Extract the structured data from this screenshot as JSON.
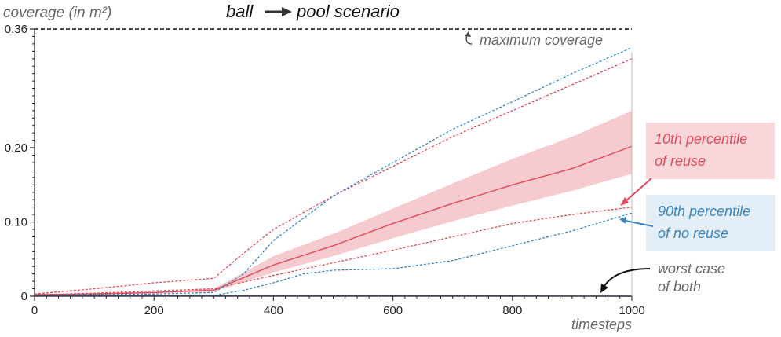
{
  "chart_data": {
    "type": "line",
    "title": {
      "left": "ball",
      "right": "pool scenario"
    },
    "ylabel": "coverage (in m²)",
    "xlabel": "timesteps",
    "xlim": [
      0,
      1000
    ],
    "ylim": [
      0,
      0.36
    ],
    "xticks": [
      0,
      200,
      400,
      600,
      800,
      1000
    ],
    "yticks": [
      {
        "value": 0,
        "label": "0"
      },
      {
        "value": 0.1,
        "label": "0.10"
      },
      {
        "value": 0.2,
        "label": "0.20"
      },
      {
        "value": 0.36,
        "label": "0.36"
      }
    ],
    "reference_line": {
      "value": 0.36,
      "label": "maximum coverage"
    },
    "colors": {
      "reuse": "#e34a5a",
      "band": "#f5c2c8",
      "noreuse": "#3a86c2",
      "gray": "#666666",
      "axis": "#222222"
    },
    "series": [
      {
        "key": "reuse_mean",
        "style": "solid",
        "color": "#e34a5a",
        "x": [
          0,
          100,
          200,
          300,
          400,
          500,
          600,
          700,
          800,
          900,
          1000
        ],
        "y": [
          0.002,
          0.003,
          0.005,
          0.008,
          0.042,
          0.068,
          0.098,
          0.125,
          0.15,
          0.172,
          0.202
        ]
      },
      {
        "key": "reuse_band",
        "style": "band",
        "color": "#f5c2c8",
        "x": [
          0,
          100,
          200,
          300,
          400,
          500,
          600,
          700,
          800,
          900,
          1000
        ],
        "lower": [
          0.001,
          0.002,
          0.004,
          0.006,
          0.032,
          0.054,
          0.078,
          0.101,
          0.122,
          0.142,
          0.165
        ],
        "upper": [
          0.003,
          0.004,
          0.006,
          0.01,
          0.054,
          0.084,
          0.118,
          0.152,
          0.185,
          0.215,
          0.25
        ]
      },
      {
        "key": "reuse_upper",
        "style": "dashed",
        "color": "#e34a5a",
        "x": [
          0,
          100,
          200,
          300,
          350,
          400,
          500,
          600,
          700,
          800,
          900,
          1000
        ],
        "y": [
          0.003,
          0.01,
          0.018,
          0.024,
          0.058,
          0.09,
          0.135,
          0.175,
          0.215,
          0.25,
          0.285,
          0.32
        ]
      },
      {
        "key": "reuse_lower",
        "style": "dashed",
        "color": "#e34a5a",
        "x": [
          0,
          100,
          200,
          300,
          400,
          500,
          600,
          700,
          800,
          900,
          1000
        ],
        "y": [
          0.002,
          0.004,
          0.007,
          0.01,
          0.028,
          0.045,
          0.062,
          0.08,
          0.098,
          0.11,
          0.12
        ]
      },
      {
        "key": "noreuse_upper",
        "style": "dashed",
        "color": "#3a86c2",
        "x": [
          0,
          100,
          200,
          300,
          350,
          400,
          500,
          600,
          700,
          800,
          900,
          1000
        ],
        "y": [
          0.001,
          0.002,
          0.003,
          0.005,
          0.03,
          0.075,
          0.135,
          0.18,
          0.225,
          0.262,
          0.3,
          0.335
        ]
      },
      {
        "key": "noreuse_lower",
        "style": "dashed",
        "color": "#3a86c2",
        "x": [
          0,
          300,
          350,
          400,
          450,
          500,
          600,
          700,
          800,
          900,
          1000
        ],
        "y": [
          0.0005,
          0.001,
          0.008,
          0.018,
          0.03,
          0.035,
          0.037,
          0.048,
          0.068,
          0.088,
          0.112
        ]
      },
      {
        "key": "worst_case",
        "style": "solid",
        "color": "#7a6fa8",
        "x": [
          0,
          600,
          1000
        ],
        "y": [
          0.0005,
          0.0005,
          0.0
        ]
      }
    ],
    "annotations": {
      "reuse": [
        "10th percentile",
        "of reuse"
      ],
      "noreuse": [
        "90th percentile",
        "of no reuse"
      ],
      "worst": [
        "worst case",
        "of both"
      ]
    }
  }
}
